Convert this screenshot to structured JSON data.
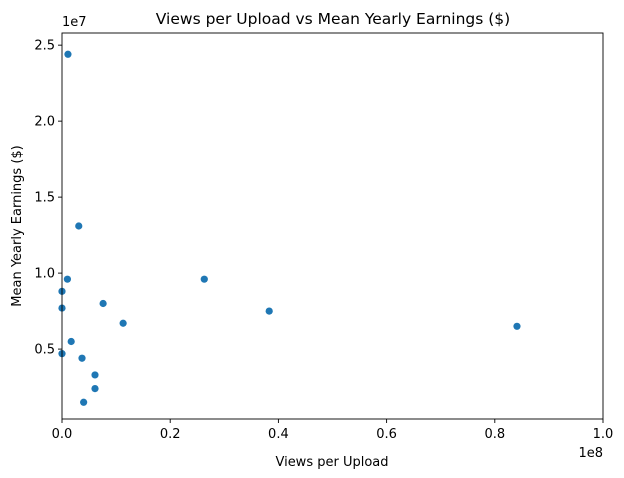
{
  "chart_data": {
    "type": "scatter",
    "title": "Views per Upload vs Mean Yearly Earnings ($)",
    "xlabel": "Views per Upload",
    "ylabel": "Mean Yearly Earnings ($)",
    "x_offset_label": "1e8",
    "y_offset_label": "1e7",
    "xlim": [
      0,
      100000000
    ],
    "ylim": [
      400000,
      25800000
    ],
    "x_ticks": [
      0,
      20000000,
      40000000,
      60000000,
      80000000,
      100000000
    ],
    "x_tick_labels": [
      "0.0",
      "0.2",
      "0.4",
      "0.6",
      "0.8",
      "1.0"
    ],
    "y_ticks": [
      5000000,
      10000000,
      15000000,
      20000000,
      25000000
    ],
    "y_tick_labels": [
      "0.5",
      "1.0",
      "1.5",
      "2.0",
      "2.5"
    ],
    "grid": false,
    "point_color": "#1f77b4",
    "points": [
      {
        "x": 1100000,
        "y": 24400000
      },
      {
        "x": 3100000,
        "y": 13100000
      },
      {
        "x": 1000000,
        "y": 9600000
      },
      {
        "x": 26300000,
        "y": 9600000
      },
      {
        "x": 0,
        "y": 8800000
      },
      {
        "x": 7600000,
        "y": 8000000
      },
      {
        "x": 0,
        "y": 7700000
      },
      {
        "x": 38300000,
        "y": 7500000
      },
      {
        "x": 11300000,
        "y": 6700000
      },
      {
        "x": 84100000,
        "y": 6500000
      },
      {
        "x": 1700000,
        "y": 5500000
      },
      {
        "x": 0,
        "y": 4700000
      },
      {
        "x": 3700000,
        "y": 4400000
      },
      {
        "x": 6100000,
        "y": 3300000
      },
      {
        "x": 6100000,
        "y": 2400000
      },
      {
        "x": 4000000,
        "y": 1500000
      }
    ]
  }
}
